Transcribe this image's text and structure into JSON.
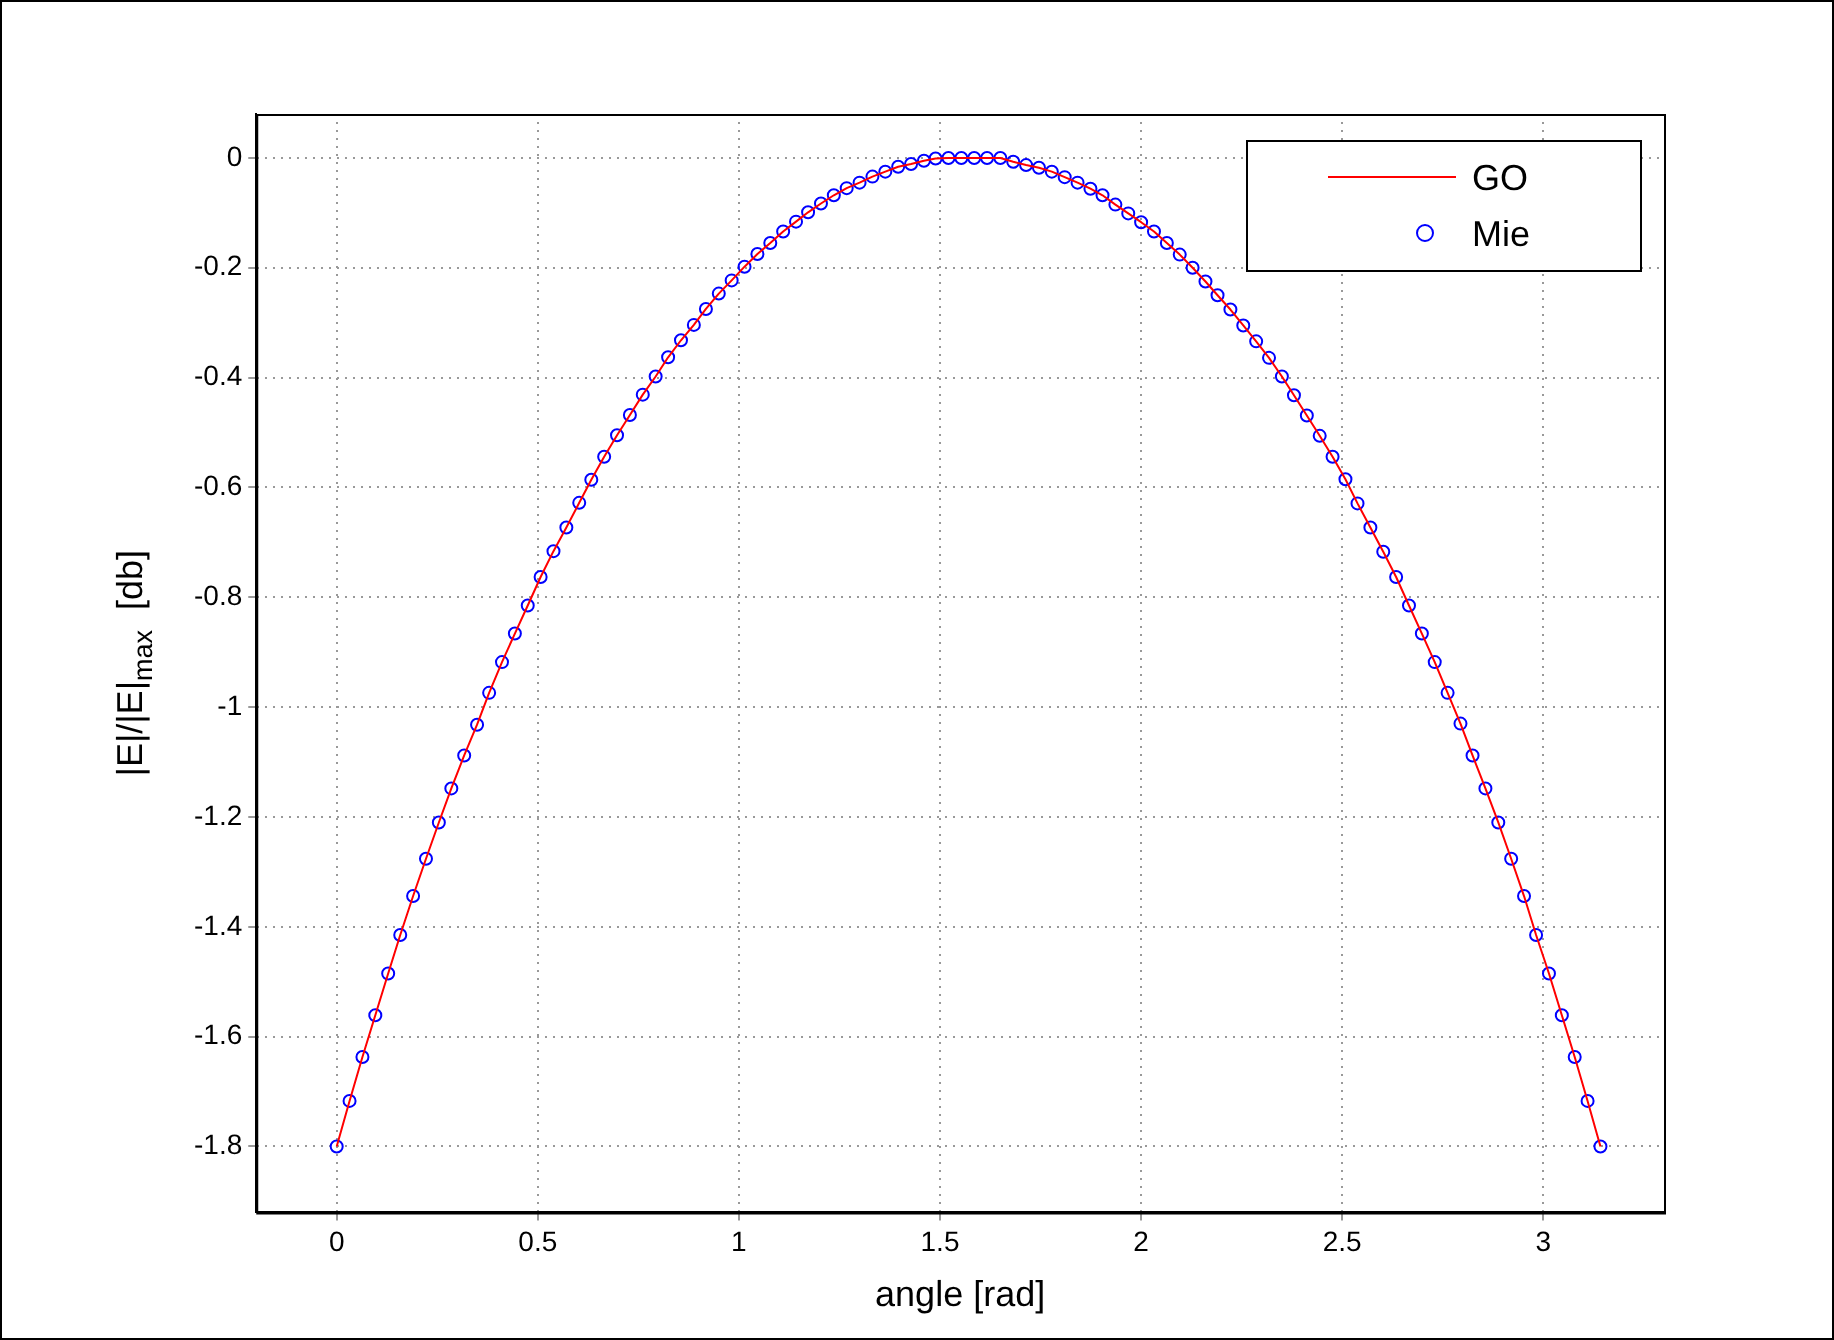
{
  "chart_data": {
    "type": "line",
    "xlabel": "angle [rad]",
    "ylabel": "|E|/|E|$_{max}$  [db]",
    "x": [
      0,
      0.032,
      0.064,
      0.096,
      0.128,
      0.158,
      0.19,
      0.222,
      0.254,
      0.285,
      0.317,
      0.349,
      0.379,
      0.411,
      0.443,
      0.475,
      0.507,
      0.539,
      0.571,
      0.603,
      0.633,
      0.665,
      0.697,
      0.729,
      0.761,
      0.793,
      0.824,
      0.856,
      0.888,
      0.918,
      0.95,
      0.982,
      1.014,
      1.046,
      1.078,
      1.11,
      1.142,
      1.172,
      1.204,
      1.236,
      1.268,
      1.3,
      1.332,
      1.364,
      1.396,
      1.428,
      1.46,
      1.489,
      1.521,
      1.553,
      1.585,
      1.617,
      1.65,
      1.682,
      1.714,
      1.746,
      1.778,
      1.81,
      1.842,
      1.874,
      1.904,
      1.936,
      1.968,
      2,
      2.032,
      2.064,
      2.096,
      2.128,
      2.16,
      2.19,
      2.222,
      2.254,
      2.286,
      2.318,
      2.35,
      2.38,
      2.412,
      2.444,
      2.476,
      2.508,
      2.538,
      2.57,
      2.602,
      2.634,
      2.666,
      2.698,
      2.73,
      2.762,
      2.794,
      2.824,
      2.856,
      2.888,
      2.92,
      2.952,
      2.982,
      3.014,
      3.046,
      3.078,
      3.11,
      3.142
    ],
    "series": [
      {
        "name": "GO",
        "color": "#ff0000",
        "marker": "none",
        "line_style": "solid",
        "values": [
          -1.8,
          -1.717,
          -1.637,
          -1.561,
          -1.485,
          -1.415,
          -1.344,
          -1.276,
          -1.21,
          -1.148,
          -1.088,
          -1.032,
          -0.974,
          -0.918,
          -0.866,
          -0.815,
          -0.763,
          -0.716,
          -0.673,
          -0.628,
          -0.586,
          -0.544,
          -0.505,
          -0.468,
          -0.431,
          -0.398,
          -0.363,
          -0.332,
          -0.304,
          -0.275,
          -0.247,
          -0.223,
          -0.198,
          -0.175,
          -0.155,
          -0.134,
          -0.116,
          -0.099,
          -0.083,
          -0.068,
          -0.055,
          -0.045,
          -0.034,
          -0.025,
          -0.016,
          -0.011,
          -0.005,
          -0.001,
          0,
          0,
          0,
          0,
          0,
          -0.007,
          -0.013,
          -0.018,
          -0.025,
          -0.035,
          -0.045,
          -0.056,
          -0.068,
          -0.085,
          -0.101,
          -0.117,
          -0.134,
          -0.155,
          -0.176,
          -0.2,
          -0.225,
          -0.25,
          -0.276,
          -0.305,
          -0.334,
          -0.364,
          -0.398,
          -0.432,
          -0.469,
          -0.506,
          -0.544,
          -0.585,
          -0.629,
          -0.673,
          -0.717,
          -0.763,
          -0.815,
          -0.866,
          -0.918,
          -0.974,
          -1.03,
          -1.088,
          -1.148,
          -1.21,
          -1.276,
          -1.344,
          -1.415,
          -1.485,
          -1.561,
          -1.637,
          -1.717,
          -1.8
        ]
      },
      {
        "name": "Mie",
        "type": "scatter",
        "color": "#0000ff",
        "marker": "circle",
        "values": [
          -1.8,
          -1.717,
          -1.637,
          -1.561,
          -1.485,
          -1.415,
          -1.344,
          -1.276,
          -1.21,
          -1.148,
          -1.088,
          -1.032,
          -0.974,
          -0.918,
          -0.866,
          -0.815,
          -0.763,
          -0.716,
          -0.673,
          -0.628,
          -0.586,
          -0.544,
          -0.505,
          -0.468,
          -0.431,
          -0.398,
          -0.363,
          -0.332,
          -0.304,
          -0.275,
          -0.247,
          -0.223,
          -0.198,
          -0.175,
          -0.155,
          -0.134,
          -0.116,
          -0.099,
          -0.083,
          -0.068,
          -0.055,
          -0.045,
          -0.034,
          -0.025,
          -0.016,
          -0.011,
          -0.005,
          -0.001,
          0,
          0,
          0,
          0,
          0,
          -0.007,
          -0.013,
          -0.018,
          -0.025,
          -0.035,
          -0.045,
          -0.056,
          -0.068,
          -0.085,
          -0.101,
          -0.117,
          -0.134,
          -0.155,
          -0.176,
          -0.2,
          -0.225,
          -0.25,
          -0.276,
          -0.305,
          -0.334,
          -0.364,
          -0.398,
          -0.432,
          -0.469,
          -0.506,
          -0.544,
          -0.585,
          -0.629,
          -0.673,
          -0.717,
          -0.763,
          -0.815,
          -0.866,
          -0.918,
          -0.974,
          -1.03,
          -1.088,
          -1.148,
          -1.21,
          -1.276,
          -1.344,
          -1.415,
          -1.485,
          -1.561,
          -1.637,
          -1.717,
          -1.8
        ]
      }
    ],
    "xlim": [
      -0.2,
      3.3
    ],
    "xticks": [
      0,
      0.5,
      1,
      1.5,
      2,
      2.5,
      3
    ],
    "ylim": [
      -1.92,
      0.08
    ],
    "yticks": [
      -1.8,
      -1.6,
      -1.4,
      -1.2,
      -1,
      -0.8,
      -0.6,
      -0.4,
      -0.2,
      0
    ],
    "grid": true,
    "legend": "top right"
  }
}
